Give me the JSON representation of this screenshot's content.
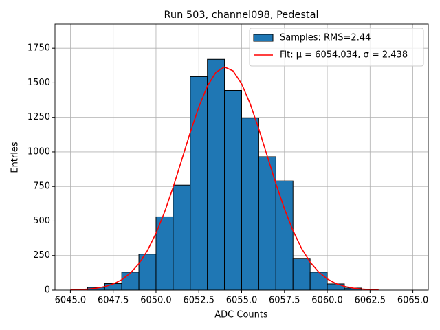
{
  "chart_data": {
    "type": "histogram",
    "title": "Run 503, channel098, Pedestal",
    "xlabel": "ADC Counts",
    "ylabel": "Entries",
    "xlim": [
      6044.1,
      6065.9
    ],
    "ylim": [
      0,
      1925
    ],
    "xticks": [
      {
        "value": 6045,
        "label": "6045.0"
      },
      {
        "value": 6047.5,
        "label": "6047.5"
      },
      {
        "value": 6050,
        "label": "6050.0"
      },
      {
        "value": 6052.5,
        "label": "6052.5"
      },
      {
        "value": 6055,
        "label": "6055.0"
      },
      {
        "value": 6057.5,
        "label": "6057.5"
      },
      {
        "value": 6060,
        "label": "6060.0"
      },
      {
        "value": 6062.5,
        "label": "6062.5"
      },
      {
        "value": 6065,
        "label": "6065.0"
      }
    ],
    "yticks": [
      0,
      250,
      500,
      750,
      1000,
      1250,
      1500,
      1750
    ],
    "grid": true,
    "legend": "upper right",
    "series": [
      {
        "name": "Samples: RMS=2.44",
        "type": "histogram",
        "color": "#1f77b4",
        "bins": [
          6046,
          6047,
          6048,
          6049,
          6050,
          6051,
          6052,
          6053,
          6054,
          6055,
          6056,
          6057,
          6058,
          6059,
          6060,
          6061,
          6062
        ],
        "values": [
          20,
          47,
          130,
          260,
          530,
          760,
          1545,
          1670,
          1445,
          1245,
          965,
          790,
          230,
          130,
          45,
          15
        ]
      },
      {
        "name": "Fit: μ = 6054.034, σ = 2.438",
        "type": "line",
        "color": "#ff0000",
        "x": [
          6045,
          6045.5,
          6046,
          6046.5,
          6047,
          6047.5,
          6048,
          6048.5,
          6049,
          6049.5,
          6050,
          6050.5,
          6051,
          6051.5,
          6052,
          6052.5,
          6053,
          6053.5,
          6054,
          6054.5,
          6055,
          6055.5,
          6056,
          6056.5,
          6057,
          6057.5,
          6058,
          6058.5,
          6059,
          6059.5,
          6060,
          6060.5,
          6061,
          6061.5,
          6062,
          6062.5,
          6063
        ],
        "values": [
          1.7,
          3.5,
          7.1,
          13.6,
          25.1,
          44.5,
          75.5,
          122.9,
          191.6,
          286.5,
          410.9,
          564.8,
          744.5,
          941.1,
          1140.4,
          1324.9,
          1476.1,
          1576.7,
          1614.8,
          1585.8,
          1493.1,
          1347.9,
          1166.8,
          968.4,
          770.5,
          587.9,
          430.1,
          301.5,
          202.8,
          130.8,
          80.9,
          48.0,
          27.2,
          14.9,
          7.8,
          3.9,
          1.9
        ]
      }
    ]
  }
}
